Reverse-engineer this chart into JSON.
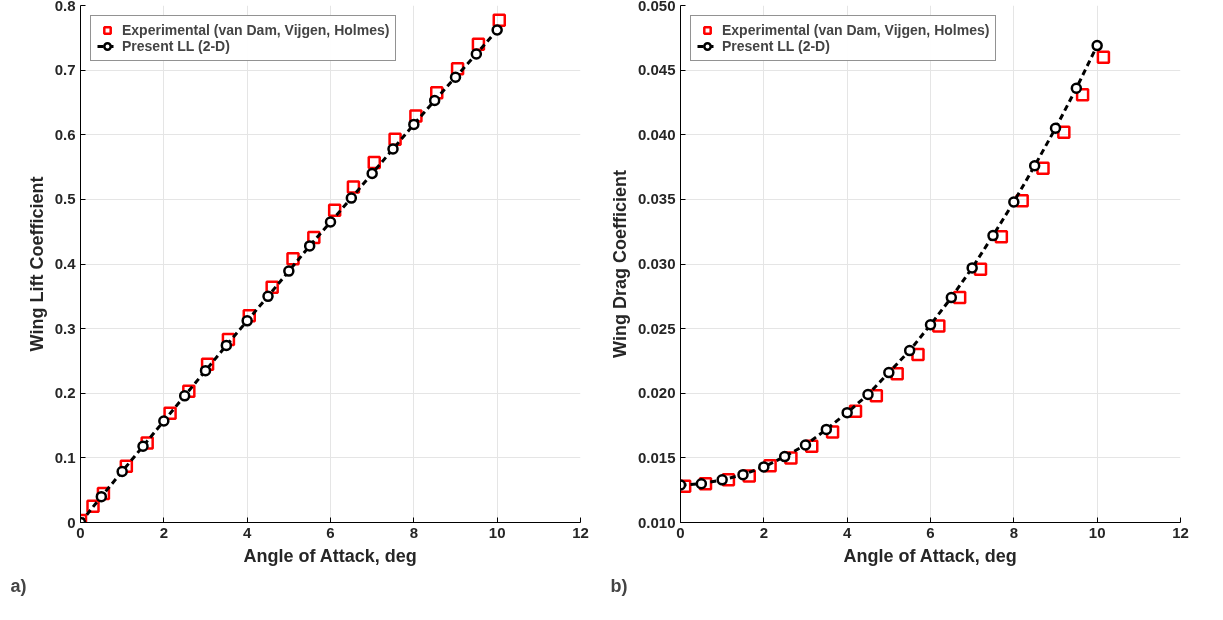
{
  "chart_data": [
    {
      "type": "line",
      "xlabel": "Angle of Attack, deg",
      "ylabel": "Wing Lift Coefficient",
      "annotations": [
        "a)"
      ],
      "xlim": [
        0,
        12
      ],
      "xticks": [
        0,
        2,
        4,
        6,
        8,
        10,
        12
      ],
      "ylim": [
        0,
        0.8
      ],
      "yticks": [
        0,
        0.1,
        0.2,
        0.3,
        0.4,
        0.5,
        0.6,
        0.7,
        0.8
      ],
      "grid": true,
      "legend": "top left",
      "series": [
        {
          "name": "Experimental (van Dam, Vijgen, Holmes)",
          "type": "scatter",
          "marker": "square",
          "color": "#ff0000",
          "x": [
            0,
            0.3,
            0.55,
            1.1,
            1.6,
            2.15,
            2.6,
            3.05,
            3.55,
            4.05,
            4.6,
            5.1,
            5.6,
            6.1,
            6.55,
            7.05,
            7.55,
            8.05,
            8.55,
            9.05,
            9.55,
            10.05
          ],
          "values": [
            0.003,
            0.025,
            0.045,
            0.087,
            0.123,
            0.169,
            0.203,
            0.245,
            0.283,
            0.32,
            0.364,
            0.408,
            0.441,
            0.483,
            0.519,
            0.557,
            0.593,
            0.629,
            0.665,
            0.702,
            0.74,
            0.777
          ]
        },
        {
          "name": "Present LL (2-D)",
          "marker": "circle",
          "line_style": "dashed",
          "color": "#000000",
          "x": [
            0,
            0.5,
            1,
            1.5,
            2,
            2.5,
            3,
            3.5,
            4,
            4.5,
            5,
            5.5,
            6,
            6.5,
            7,
            7.5,
            8,
            8.5,
            9,
            9.5,
            10
          ],
          "values": [
            0,
            0.04,
            0.079,
            0.118,
            0.157,
            0.196,
            0.235,
            0.274,
            0.312,
            0.35,
            0.389,
            0.428,
            0.465,
            0.502,
            0.54,
            0.578,
            0.616,
            0.653,
            0.689,
            0.725,
            0.762
          ]
        }
      ]
    },
    {
      "type": "line",
      "xlabel": "Angle of Attack, deg",
      "ylabel": "Wing Drag Coefficient",
      "annotations": [
        "b)"
      ],
      "xlim": [
        0,
        12
      ],
      "xticks": [
        0,
        2,
        4,
        6,
        8,
        10,
        12
      ],
      "ylim": [
        0.01,
        0.05
      ],
      "yticks": [
        {
          "value": 0.01,
          "label": "0.010"
        },
        {
          "value": 0.015,
          "label": "0.015"
        },
        {
          "value": 0.02,
          "label": "0.020"
        },
        {
          "value": 0.025,
          "label": "0.025"
        },
        {
          "value": 0.03,
          "label": "0.030"
        },
        {
          "value": 0.035,
          "label": "0.035"
        },
        {
          "value": 0.04,
          "label": "0.040"
        },
        {
          "value": 0.045,
          "label": "0.045"
        },
        {
          "value": 0.05,
          "label": "0.050"
        }
      ],
      "grid": true,
      "legend": "top left",
      "series": [
        {
          "name": "Experimental (van Dam, Vijgen, Holmes)",
          "type": "scatter",
          "marker": "square",
          "color": "#ff0000",
          "x": [
            0.1,
            0.6,
            1.15,
            1.65,
            2.15,
            2.65,
            3.15,
            3.65,
            4.2,
            4.7,
            5.2,
            5.7,
            6.2,
            6.7,
            7.2,
            7.7,
            8.2,
            8.7,
            9.2,
            9.65,
            10.15
          ],
          "values": [
            0.0128,
            0.013,
            0.0133,
            0.0136,
            0.0144,
            0.015,
            0.0159,
            0.017,
            0.0186,
            0.0198,
            0.0215,
            0.023,
            0.0252,
            0.0274,
            0.0296,
            0.0321,
            0.0349,
            0.0374,
            0.0402,
            0.0431,
            0.046
          ]
        },
        {
          "name": "Present LL (2-D)",
          "marker": "circle",
          "line_style": "dashed",
          "color": "#000000",
          "x": [
            0,
            0.5,
            1,
            1.5,
            2,
            2.5,
            3,
            3.5,
            4,
            4.5,
            5,
            5.5,
            6,
            6.5,
            7,
            7.5,
            8,
            8.5,
            9,
            9.5,
            10
          ],
          "values": [
            0.0129,
            0.013,
            0.0133,
            0.0137,
            0.0143,
            0.0151,
            0.016,
            0.0172,
            0.0185,
            0.0199,
            0.0216,
            0.0233,
            0.0253,
            0.0274,
            0.0297,
            0.0322,
            0.0348,
            0.0376,
            0.0405,
            0.0436,
            0.0469
          ]
        }
      ]
    }
  ]
}
